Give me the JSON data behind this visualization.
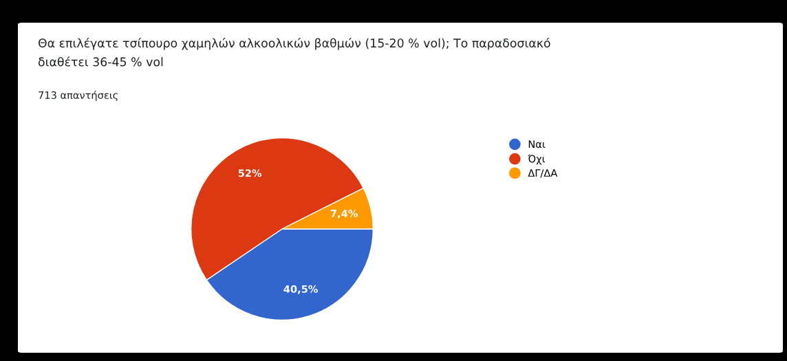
{
  "chart_data": {
    "type": "pie",
    "title": "Θα επιλέγατε τσίπουρο χαμηλών αλκοολικών βαθμών (15-20 % vol); Το παραδοσιακό\nδιαθέτει 36-45 % vol",
    "subtitle": "713 απαντήσεις",
    "categories": [
      "Ναι",
      "Όχι",
      "ΔΓ/ΔΑ"
    ],
    "values": [
      40.5,
      52,
      7.4
    ],
    "value_labels": [
      "40,5%",
      "52%",
      "7,4%"
    ],
    "colors": [
      "#3366cc",
      "#dc3912",
      "#ff9900"
    ],
    "legend": "right"
  }
}
